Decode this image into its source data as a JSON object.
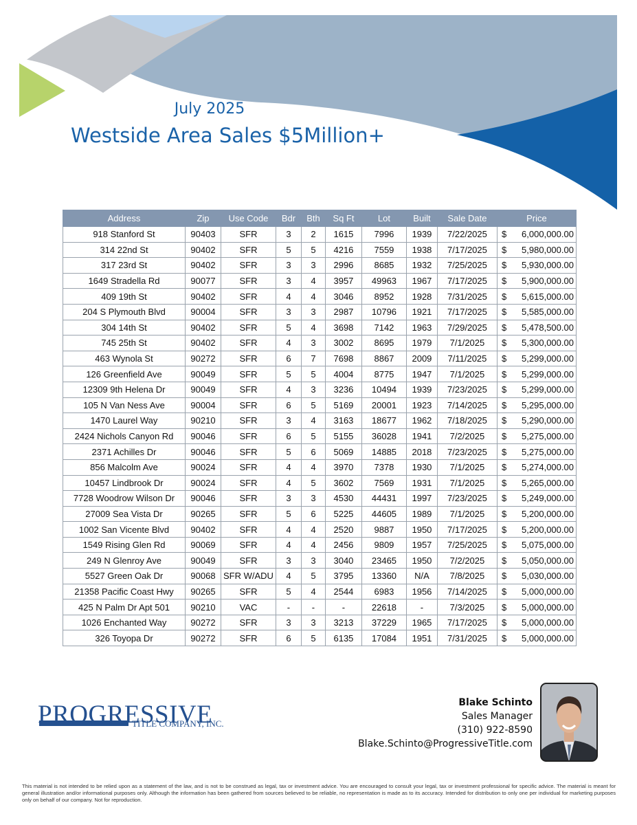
{
  "header": {
    "month": "July 2025",
    "title": "Westside Area Sales $5Million+"
  },
  "table": {
    "columns": [
      "Address",
      "Zip",
      "Use Code",
      "Bdr",
      "Bth",
      "Sq Ft",
      "Lot",
      "Built",
      "Sale Date",
      "Price"
    ],
    "rows": [
      [
        "918 Stanford St",
        "90403",
        "SFR",
        "3",
        "2",
        "1615",
        "7996",
        "1939",
        "7/22/2025",
        "$",
        "6,000,000.00"
      ],
      [
        "314 22nd St",
        "90402",
        "SFR",
        "5",
        "5",
        "4216",
        "7559",
        "1938",
        "7/17/2025",
        "$",
        "5,980,000.00"
      ],
      [
        "317 23rd St",
        "90402",
        "SFR",
        "3",
        "3",
        "2996",
        "8685",
        "1932",
        "7/25/2025",
        "$",
        "5,930,000.00"
      ],
      [
        "1649 Stradella Rd",
        "90077",
        "SFR",
        "3",
        "4",
        "3957",
        "49963",
        "1967",
        "7/17/2025",
        "$",
        "5,900,000.00"
      ],
      [
        "409 19th St",
        "90402",
        "SFR",
        "4",
        "4",
        "3046",
        "8952",
        "1928",
        "7/31/2025",
        "$",
        "5,615,000.00"
      ],
      [
        "204 S Plymouth Blvd",
        "90004",
        "SFR",
        "3",
        "3",
        "2987",
        "10796",
        "1921",
        "7/17/2025",
        "$",
        "5,585,000.00"
      ],
      [
        "304 14th St",
        "90402",
        "SFR",
        "5",
        "4",
        "3698",
        "7142",
        "1963",
        "7/29/2025",
        "$",
        "5,478,500.00"
      ],
      [
        "745 25th St",
        "90402",
        "SFR",
        "4",
        "3",
        "3002",
        "8695",
        "1979",
        "7/1/2025",
        "$",
        "5,300,000.00"
      ],
      [
        "463 Wynola St",
        "90272",
        "SFR",
        "6",
        "7",
        "7698",
        "8867",
        "2009",
        "7/11/2025",
        "$",
        "5,299,000.00"
      ],
      [
        "126 Greenfield Ave",
        "90049",
        "SFR",
        "5",
        "5",
        "4004",
        "8775",
        "1947",
        "7/1/2025",
        "$",
        "5,299,000.00"
      ],
      [
        "12309 9th Helena Dr",
        "90049",
        "SFR",
        "4",
        "3",
        "3236",
        "10494",
        "1939",
        "7/23/2025",
        "$",
        "5,299,000.00"
      ],
      [
        "105 N Van Ness Ave",
        "90004",
        "SFR",
        "6",
        "5",
        "5169",
        "20001",
        "1923",
        "7/14/2025",
        "$",
        "5,295,000.00"
      ],
      [
        "1470 Laurel Way",
        "90210",
        "SFR",
        "3",
        "4",
        "3163",
        "18677",
        "1962",
        "7/18/2025",
        "$",
        "5,290,000.00"
      ],
      [
        "2424 Nichols Canyon Rd",
        "90046",
        "SFR",
        "6",
        "5",
        "5155",
        "36028",
        "1941",
        "7/2/2025",
        "$",
        "5,275,000.00"
      ],
      [
        "2371 Achilles Dr",
        "90046",
        "SFR",
        "5",
        "6",
        "5069",
        "14885",
        "2018",
        "7/23/2025",
        "$",
        "5,275,000.00"
      ],
      [
        "856 Malcolm Ave",
        "90024",
        "SFR",
        "4",
        "4",
        "3970",
        "7378",
        "1930",
        "7/1/2025",
        "$",
        "5,274,000.00"
      ],
      [
        "10457 Lindbrook Dr",
        "90024",
        "SFR",
        "4",
        "5",
        "3602",
        "7569",
        "1931",
        "7/1/2025",
        "$",
        "5,265,000.00"
      ],
      [
        "7728 Woodrow Wilson Dr",
        "90046",
        "SFR",
        "3",
        "3",
        "4530",
        "44431",
        "1997",
        "7/23/2025",
        "$",
        "5,249,000.00"
      ],
      [
        "27009 Sea Vista Dr",
        "90265",
        "SFR",
        "5",
        "6",
        "5225",
        "44605",
        "1989",
        "7/1/2025",
        "$",
        "5,200,000.00"
      ],
      [
        "1002 San Vicente Blvd",
        "90402",
        "SFR",
        "4",
        "4",
        "2520",
        "9887",
        "1950",
        "7/17/2025",
        "$",
        "5,200,000.00"
      ],
      [
        "1549 Rising Glen Rd",
        "90069",
        "SFR",
        "4",
        "4",
        "2456",
        "9809",
        "1957",
        "7/25/2025",
        "$",
        "5,075,000.00"
      ],
      [
        "249 N Glenroy Ave",
        "90049",
        "SFR",
        "3",
        "3",
        "3040",
        "23465",
        "1950",
        "7/2/2025",
        "$",
        "5,050,000.00"
      ],
      [
        "5527 Green Oak Dr",
        "90068",
        "SFR W/ADU",
        "4",
        "5",
        "3795",
        "13360",
        "N/A",
        "7/8/2025",
        "$",
        "5,030,000.00"
      ],
      [
        "21358 Pacific Coast Hwy",
        "90265",
        "SFR",
        "5",
        "4",
        "2544",
        "6983",
        "1956",
        "7/14/2025",
        "$",
        "5,000,000.00"
      ],
      [
        "425 N Palm Dr Apt 501",
        "90210",
        "VAC",
        "-",
        "-",
        "-",
        "22618",
        "-",
        "7/3/2025",
        "$",
        "5,000,000.00"
      ],
      [
        "1026 Enchanted Way",
        "90272",
        "SFR",
        "3",
        "3",
        "3213",
        "37229",
        "1965",
        "7/17/2025",
        "$",
        "5,000,000.00"
      ],
      [
        "326 Toyopa Dr",
        "90272",
        "SFR",
        "6",
        "5",
        "6135",
        "17084",
        "1951",
        "7/31/2025",
        "$",
        "5,000,000.00"
      ]
    ]
  },
  "logo": {
    "name": "PROGRESSIVE",
    "subtitle": "TITLE COMPANY, INC."
  },
  "contact": {
    "name": "Blake Schinto",
    "role": "Sales Manager",
    "phone": "(310) 922-8590",
    "email": "Blake.Schinto@ProgressiveTitle.com"
  },
  "disclaimer": "This material is not intended to be relied upon as a statement of the law, and is not to be construed as legal, tax or investment advice. You are encouraged to consult your legal, tax or investment professional for specific advice. The material is meant for general illustration and/or informational purposes only. Although the information has been gathered from sources believed to be reliable, no representation is made as to its accuracy. Intended for distribution to only one per individual for marketing purposes only on behalf of our company.  Not for reproduction."
}
